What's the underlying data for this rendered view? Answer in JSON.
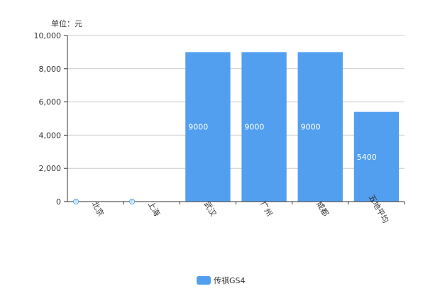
{
  "chart_data": {
    "type": "bar",
    "unit_label": "单位：元",
    "categories": [
      "北京",
      "上海",
      "武汉",
      "广州",
      "成都",
      "五地平均"
    ],
    "series": [
      {
        "name": "传祺GS4",
        "values": [
          0,
          0,
          9000,
          9000,
          9000,
          5400
        ],
        "color": "#529ff0"
      }
    ],
    "data_labels": [
      "0",
      "0",
      "9000",
      "9000",
      "9000",
      "5400"
    ],
    "ylim": [
      0,
      10000
    ],
    "yticks": [
      "0",
      "2,000",
      "4,000",
      "6,000",
      "8,000",
      "10,000"
    ],
    "grid": true,
    "legend_position": "bottom-center"
  }
}
